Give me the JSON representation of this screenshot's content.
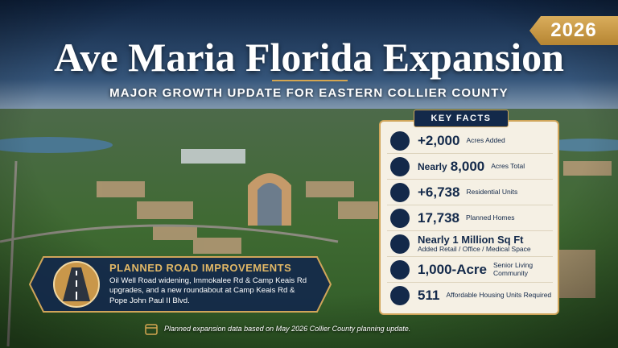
{
  "badge": "2026",
  "title": "Ave Maria Florida Expansion",
  "subtitle": "MAJOR GROWTH UPDATE FOR EASTERN COLLIER COUNTY",
  "key_facts": {
    "heading": "KEY FACTS",
    "items": [
      {
        "value": "+2,000",
        "label": "Acres Added"
      },
      {
        "prefix": "Nearly",
        "value": "8,000",
        "label": "Acres Total"
      },
      {
        "value": "+6,738",
        "label": "Residential Units"
      },
      {
        "value": "17,738",
        "label": "Planned Homes"
      },
      {
        "value": "Nearly 1 Million Sq Ft",
        "label": "Added Retail / Office / Medical Space"
      },
      {
        "value": "1,000-Acre",
        "label": "Senior Living Community"
      },
      {
        "value": "511",
        "label": "Affordable Housing Units Required"
      }
    ]
  },
  "road": {
    "title": "PLANNED ROAD IMPROVEMENTS",
    "text": "Oil Well Road widening, Immokalee Rd & Camp Keais Rd upgrades, and a new roundabout at Camp Keais Rd & Pope John Paul II Blvd."
  },
  "footnote": "Planned expansion data based on May 2026 Collier County planning update."
}
